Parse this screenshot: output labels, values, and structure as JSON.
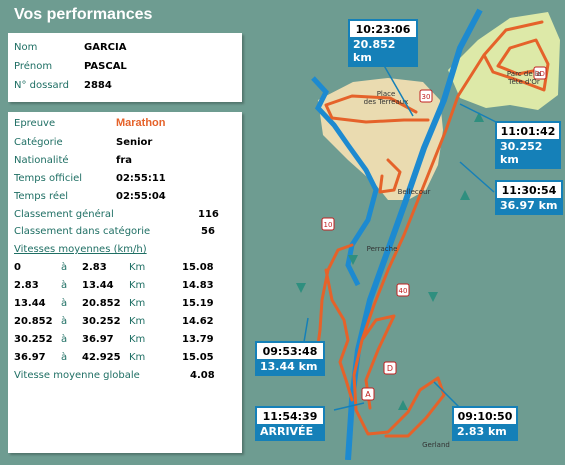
{
  "header": {
    "title": "Vos performances"
  },
  "identity": {
    "rows": [
      {
        "label": "Nom",
        "value": "GARCIA"
      },
      {
        "label": "Prénom",
        "value": "PASCAL"
      },
      {
        "label": "N° dossard",
        "value": "2884"
      }
    ]
  },
  "performance": {
    "epreuve_label": "Epreuve",
    "epreuve_value": "Marathon",
    "categorie_label": "Catégorie",
    "categorie_value": "Senior",
    "nationalite_label": "Nationalité",
    "nationalite_value": "fra",
    "temps_officiel_label": "Temps officiel",
    "temps_officiel_value": "02:55:11",
    "temps_reel_label": "Temps réel",
    "temps_reel_value": "02:55:04",
    "classement_general_label": "Classement général",
    "classement_general_value": "116",
    "classement_categorie_label": "Classement dans catégorie",
    "classement_categorie_value": "56",
    "vitesses_title": "Vitesses moyennes (km/h)",
    "a_label": "à",
    "km_label": "Km",
    "speeds": [
      {
        "from": "0",
        "to": "2.83",
        "speed": "15.08"
      },
      {
        "from": "2.83",
        "to": "13.44",
        "speed": "14.83"
      },
      {
        "from": "13.44",
        "to": "20.852",
        "speed": "15.19"
      },
      {
        "from": "20.852",
        "to": "30.252",
        "speed": "14.62"
      },
      {
        "from": "30.252",
        "to": "36.97",
        "speed": "13.79"
      },
      {
        "from": "36.97",
        "to": "42.925",
        "speed": "15.05"
      }
    ],
    "vitesse_globale_label": "Vitesse moyenne globale",
    "vitesse_globale_value": "4.08"
  },
  "map": {
    "labels": {
      "place_terreaux_1": "Place",
      "place_terreaux_2": "des Terreaux",
      "parc_1": "Parc de la",
      "parc_2": "Tête d'Or",
      "bellecour": "Bellecour",
      "perrache": "Perrache",
      "gerland": "Gerland"
    },
    "markers": {
      "m10": "10",
      "m20": "20",
      "m30": "30",
      "m40": "40",
      "mA": "A",
      "mD": "D"
    },
    "checkpoints": [
      {
        "time": "10:23:06",
        "dist": "20.852 km"
      },
      {
        "time": "11:01:42",
        "dist": "30.252 km"
      },
      {
        "time": "11:30:54",
        "dist": "36.97 km"
      },
      {
        "time": "09:53:48",
        "dist": "13.44 km"
      },
      {
        "time": "11:54:39",
        "dist": "ARRIVÉE"
      },
      {
        "time": "09:10:50",
        "dist": "2.83 km"
      }
    ],
    "colors": {
      "route": "#e5622a",
      "river": "#1d8ad0",
      "water_bg": "#6e9c91",
      "park": "#dde9a8",
      "town": "#eadbb0",
      "box": "#1580b8"
    }
  }
}
